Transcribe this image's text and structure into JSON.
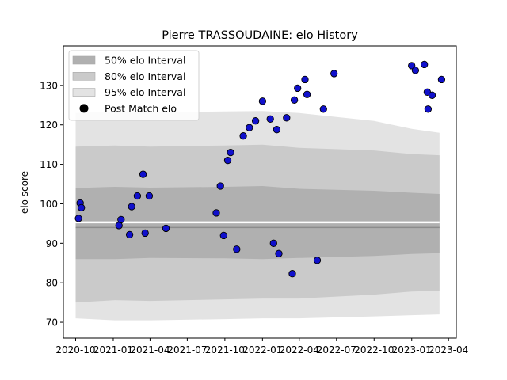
{
  "chart_data": {
    "type": "scatter",
    "title": "Pierre TRASSOUDAINE: elo History",
    "xlabel": "",
    "ylabel": "elo score",
    "ylim": [
      66,
      140
    ],
    "xlim": [
      "2020-09-01",
      "2023-04-20"
    ],
    "grid": false,
    "legend_position": "top-left",
    "y_ticks": [
      70,
      80,
      90,
      100,
      110,
      120,
      130
    ],
    "x_ticks": [
      "2020-10",
      "2021-01",
      "2021-04",
      "2021-07",
      "2021-10",
      "2022-01",
      "2022-04",
      "2022-07",
      "2022-10",
      "2023-01",
      "2023-04"
    ],
    "colors": {
      "band50": "#b0b0b0",
      "band80": "#cacaca",
      "band95": "#e3e3e3",
      "point_fill": "#1010cc",
      "point_edge": "#000000"
    },
    "legend": [
      {
        "label": "50% elo Interval",
        "kind": "band50"
      },
      {
        "label": "80% elo Interval",
        "kind": "band80"
      },
      {
        "label": "95% elo Interval",
        "kind": "band95"
      },
      {
        "label": "Post Match elo",
        "kind": "point"
      }
    ],
    "bands": {
      "x": [
        "2020-10-01",
        "2021-01-05",
        "2021-04-01",
        "2021-10-01",
        "2022-01-01",
        "2022-04-01",
        "2022-10-01",
        "2023-01-01",
        "2023-03-10"
      ],
      "p95_hi": [
        123,
        123.5,
        123.2,
        123.4,
        123.5,
        123,
        121,
        119,
        118
      ],
      "p80_hi": [
        114.5,
        114.8,
        114.5,
        114.8,
        115,
        114.2,
        113.5,
        112.6,
        112.3
      ],
      "p50_hi": [
        104,
        104.3,
        104.1,
        104.3,
        104.5,
        103.8,
        103.3,
        102.8,
        102.5
      ],
      "p50_lo": [
        86,
        86,
        86.3,
        86.2,
        86,
        86.3,
        86.8,
        87.3,
        87.5
      ],
      "p80_lo": [
        75,
        75.6,
        75.4,
        75.8,
        76,
        76,
        77,
        77.8,
        78
      ],
      "p95_lo": [
        71,
        70.5,
        70.5,
        70.8,
        71,
        71,
        71.5,
        71.8,
        72
      ]
    },
    "series": [
      {
        "name": "Post Match elo",
        "points": [
          [
            "2020-10-08",
            96.3
          ],
          [
            "2020-10-12",
            100.2
          ],
          [
            "2020-10-15",
            99.0
          ],
          [
            "2021-01-15",
            94.5
          ],
          [
            "2021-01-20",
            96.0
          ],
          [
            "2021-02-10",
            92.2
          ],
          [
            "2021-02-15",
            99.3
          ],
          [
            "2021-03-01",
            102.0
          ],
          [
            "2021-03-15",
            107.5
          ],
          [
            "2021-03-20",
            92.6
          ],
          [
            "2021-03-30",
            102.0
          ],
          [
            "2021-05-10",
            93.8
          ],
          [
            "2021-09-10",
            97.7
          ],
          [
            "2021-09-20",
            104.5
          ],
          [
            "2021-09-28",
            92.0
          ],
          [
            "2021-10-08",
            111.0
          ],
          [
            "2021-10-15",
            113.0
          ],
          [
            "2021-10-30",
            88.5
          ],
          [
            "2021-11-15",
            117.2
          ],
          [
            "2021-11-30",
            119.3
          ],
          [
            "2021-12-15",
            121.0
          ],
          [
            "2022-01-01",
            126.0
          ],
          [
            "2022-01-20",
            121.5
          ],
          [
            "2022-01-28",
            90.0
          ],
          [
            "2022-02-05",
            118.8
          ],
          [
            "2022-02-10",
            87.4
          ],
          [
            "2022-03-01",
            121.8
          ],
          [
            "2022-03-15",
            82.3
          ],
          [
            "2022-03-20",
            126.3
          ],
          [
            "2022-03-28",
            129.3
          ],
          [
            "2022-04-15",
            131.5
          ],
          [
            "2022-04-20",
            127.7
          ],
          [
            "2022-05-15",
            85.7
          ],
          [
            "2022-05-30",
            124.0
          ],
          [
            "2022-06-25",
            133.0
          ],
          [
            "2023-01-01",
            135.0
          ],
          [
            "2023-01-10",
            133.8
          ],
          [
            "2023-02-01",
            135.3
          ],
          [
            "2023-02-08",
            128.3
          ],
          [
            "2023-02-10",
            124.0
          ],
          [
            "2023-02-20",
            127.5
          ],
          [
            "2023-03-15",
            131.5
          ]
        ]
      }
    ]
  }
}
